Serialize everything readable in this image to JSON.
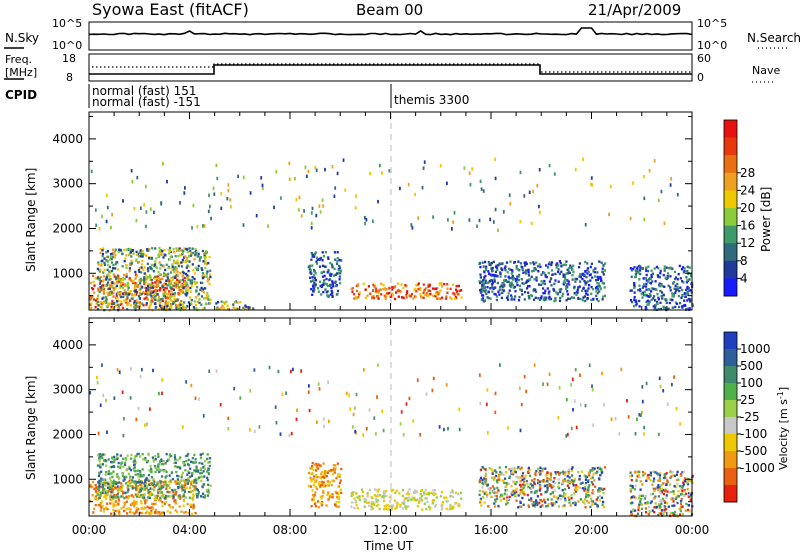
{
  "header": {
    "station": "Syowa East (fitACF)",
    "beam": "Beam 00",
    "date": "21/Apr/2009"
  },
  "status_panels": {
    "nsky": {
      "label": "N.Sky",
      "ticks": [
        "10^5",
        "10^0"
      ]
    },
    "nsearch": {
      "label": "N.Search",
      "ticks": [
        "10^5",
        "10^0"
      ]
    },
    "freq": {
      "label_lines": [
        "Freq.",
        "[MHz]"
      ],
      "ticks": [
        "18",
        "8"
      ]
    },
    "nave": {
      "label": "Nave",
      "ticks": [
        "60",
        "0"
      ]
    },
    "cpid": {
      "label": "CPID",
      "entries": [
        {
          "text": "normal (fast) 151",
          "start": "00:00"
        },
        {
          "text": "normal (fast) -151",
          "start": "00:00"
        },
        {
          "text": "themis 3300",
          "start": "12:00"
        }
      ]
    }
  },
  "chart_data": [
    {
      "type": "heatmap",
      "ylabel": "Slant Range [km]",
      "ylim": [
        180,
        4600
      ],
      "yticks": [
        1000,
        2000,
        3000,
        4000
      ],
      "xlim": [
        "00:00",
        "24:00"
      ],
      "colorbar": {
        "label": "Power [dB]",
        "ticks": [
          4,
          8,
          12,
          16,
          20,
          24,
          28
        ],
        "colors": [
          "#1a1aff",
          "#1f3a9a",
          "#2f6b7a",
          "#3f9a6a",
          "#8acc3a",
          "#f0c800",
          "#f0a020",
          "#e87010",
          "#e83810",
          "#e81010"
        ]
      },
      "echo_regions": [
        {
          "t0": 0.0,
          "t1": 3.8,
          "r0": 250,
          "r1": 1000,
          "level": "high"
        },
        {
          "t0": 0.3,
          "t1": 4.8,
          "r0": 200,
          "r1": 1600,
          "level": "mid"
        },
        {
          "t0": 5.0,
          "t1": 6.5,
          "r0": 200,
          "r1": 400,
          "level": "mid"
        },
        {
          "t0": 8.7,
          "t1": 10.0,
          "r0": 500,
          "r1": 1500,
          "level": "low"
        },
        {
          "t0": 10.4,
          "t1": 14.8,
          "r0": 450,
          "r1": 800,
          "level": "high"
        },
        {
          "t0": 15.5,
          "t1": 20.5,
          "r0": 400,
          "r1": 1300,
          "level": "low"
        },
        {
          "t0": 21.5,
          "t1": 24.0,
          "r0": 200,
          "r1": 1200,
          "level": "low"
        }
      ]
    },
    {
      "type": "heatmap",
      "ylabel": "Slant Range [km]",
      "xlabel": "Time UT",
      "ylim": [
        180,
        4600
      ],
      "yticks": [
        1000,
        2000,
        3000,
        4000
      ],
      "xticks": [
        "00:00",
        "04:00",
        "08:00",
        "12:00",
        "16:00",
        "20:00",
        "00:00"
      ],
      "colorbar": {
        "label": "Velocity [m s^-1]",
        "ticks": [
          1000,
          500,
          100,
          25,
          -25,
          -100,
          -500,
          -1000
        ],
        "colors": [
          "#1f3fc0",
          "#2f5f9a",
          "#3f8a6a",
          "#4fb04a",
          "#9ad04a",
          "#c8c8c8",
          "#f0c800",
          "#f09a10",
          "#e86010",
          "#e82010"
        ]
      },
      "echo_regions": [
        {
          "t0": 0.0,
          "t1": 4.2,
          "r0": 250,
          "r1": 1000,
          "level": "neg"
        },
        {
          "t0": 0.3,
          "t1": 4.8,
          "r0": 600,
          "r1": 1600,
          "level": "pos"
        },
        {
          "t0": 8.7,
          "t1": 10.0,
          "r0": 400,
          "r1": 1400,
          "level": "neg"
        },
        {
          "t0": 10.4,
          "t1": 14.8,
          "r0": 350,
          "r1": 800,
          "level": "zero"
        },
        {
          "t0": 15.5,
          "t1": 20.5,
          "r0": 400,
          "r1": 1300,
          "level": "mix"
        },
        {
          "t0": 21.5,
          "t1": 24.0,
          "r0": 200,
          "r1": 1200,
          "level": "mix"
        }
      ]
    }
  ]
}
